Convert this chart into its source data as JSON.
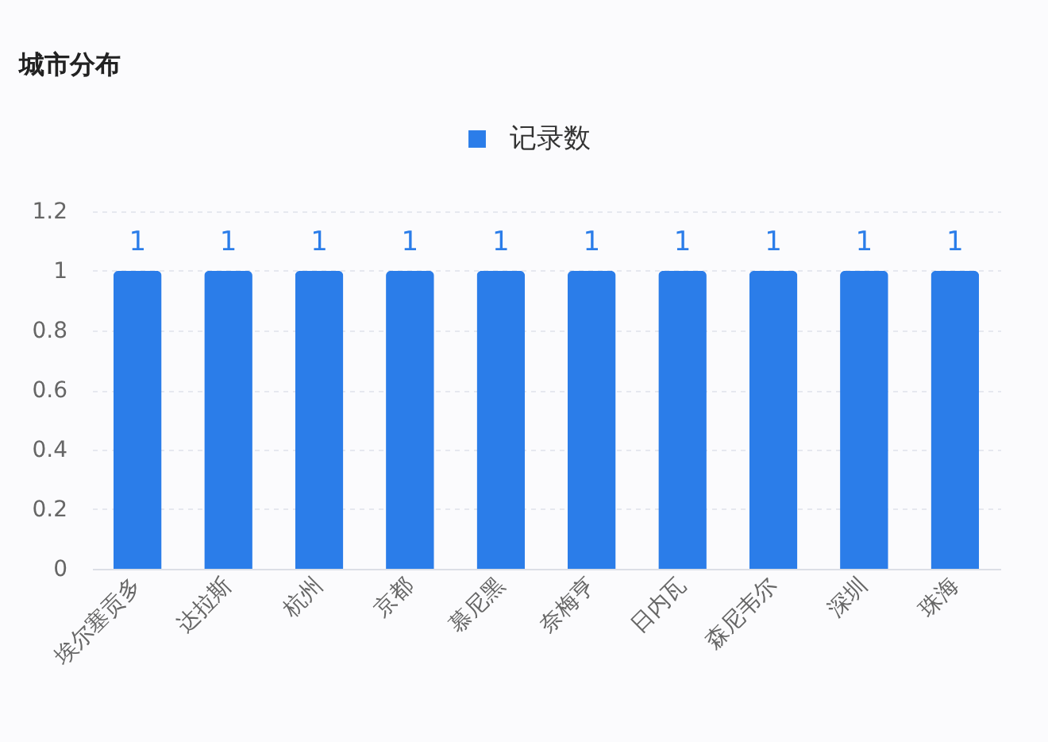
{
  "chart_data": {
    "type": "bar",
    "title": "城市分布",
    "categories": [
      "埃尔塞贡多",
      "达拉斯",
      "杭州",
      "京都",
      "慕尼黑",
      "奈梅亨",
      "日内瓦",
      "森尼韦尔",
      "深圳",
      "珠海"
    ],
    "series": [
      {
        "name": "记录数",
        "color": "#2b7de9",
        "values": [
          1,
          1,
          1,
          1,
          1,
          1,
          1,
          1,
          1,
          1
        ]
      }
    ],
    "ylim": [
      0,
      1.2
    ],
    "yticks": [
      0,
      0.2,
      0.4,
      0.6,
      0.8,
      1,
      1.2
    ],
    "grid": "y",
    "legend": "top",
    "data_labels": true
  }
}
